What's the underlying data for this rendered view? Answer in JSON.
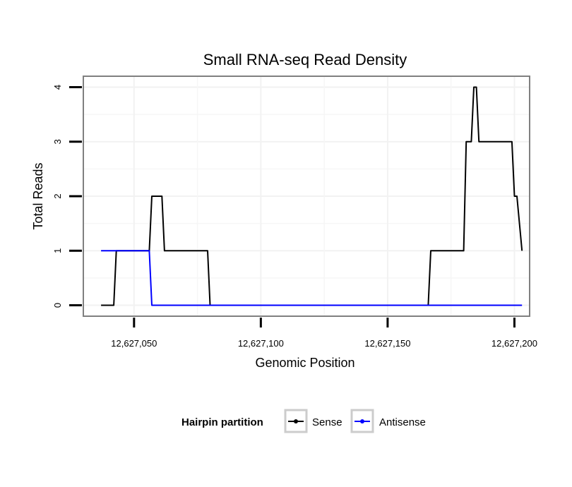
{
  "chart_data": {
    "type": "line",
    "title": "Small RNA-seq Read Density",
    "xlabel": "Genomic Position",
    "ylabel": "Total Reads",
    "xlim": [
      12627030,
      12627206
    ],
    "ylim": [
      -0.2,
      4.2
    ],
    "x_ticks": [
      12627050,
      12627100,
      12627150,
      12627200
    ],
    "x_tick_labels": [
      "12,627,050",
      "12,627,100",
      "12,627,150",
      "12,627,200"
    ],
    "y_ticks": [
      0,
      1,
      2,
      3,
      4
    ],
    "y_tick_labels": [
      "0",
      "1",
      "2",
      "3",
      "4"
    ],
    "grid": true,
    "legend": {
      "title": "Hairpin partition",
      "position": "bottom"
    },
    "series": [
      {
        "name": "Sense",
        "color": "#000000",
        "x": [
          12627037,
          12627042,
          12627043,
          12627056,
          12627057,
          12627061,
          12627062,
          12627079,
          12627080,
          12627166,
          12627167,
          12627180,
          12627181,
          12627183,
          12627184,
          12627185,
          12627186,
          12627199,
          12627200,
          12627201,
          12627203
        ],
        "values": [
          0,
          0,
          1,
          1,
          2,
          2,
          1,
          1,
          0,
          0,
          1,
          1,
          3,
          3,
          4,
          4,
          3,
          3,
          2,
          2,
          1
        ]
      },
      {
        "name": "Antisense",
        "color": "#0000ff",
        "x": [
          12627037,
          12627056,
          12627057,
          12627203
        ],
        "values": [
          1,
          1,
          0,
          0
        ]
      }
    ]
  }
}
